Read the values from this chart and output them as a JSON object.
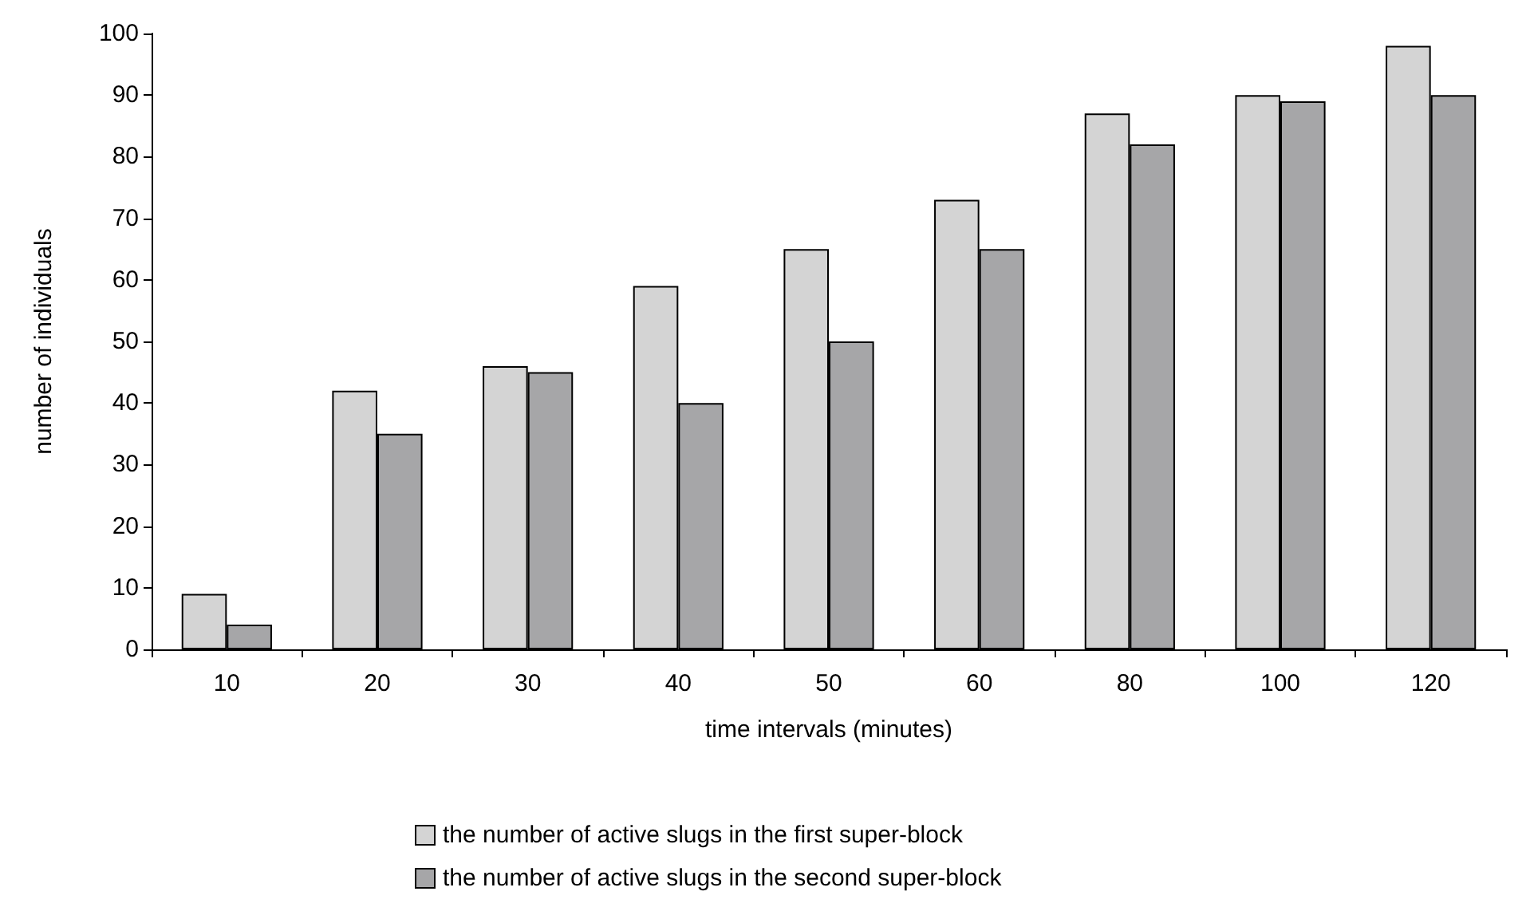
{
  "chart_data": {
    "type": "bar",
    "xlabel": "time intervals (minutes)",
    "ylabel": "number of individuals",
    "categories": [
      "10",
      "20",
      "30",
      "40",
      "50",
      "60",
      "80",
      "100",
      "120"
    ],
    "series": [
      {
        "name": "the number of active slugs in the first super-block",
        "color": "#d4d4d4",
        "values": [
          9,
          42,
          46,
          59,
          65,
          73,
          87,
          90,
          98
        ]
      },
      {
        "name": "the number of active slugs in the second super-block",
        "color": "#a6a6a8",
        "values": [
          4,
          35,
          45,
          40,
          50,
          65,
          82,
          89,
          90
        ]
      }
    ],
    "ylim": [
      0,
      100
    ],
    "yticks": [
      0,
      10,
      20,
      30,
      40,
      50,
      60,
      70,
      80,
      90,
      100
    ],
    "grid": false,
    "legend": "bottom"
  }
}
